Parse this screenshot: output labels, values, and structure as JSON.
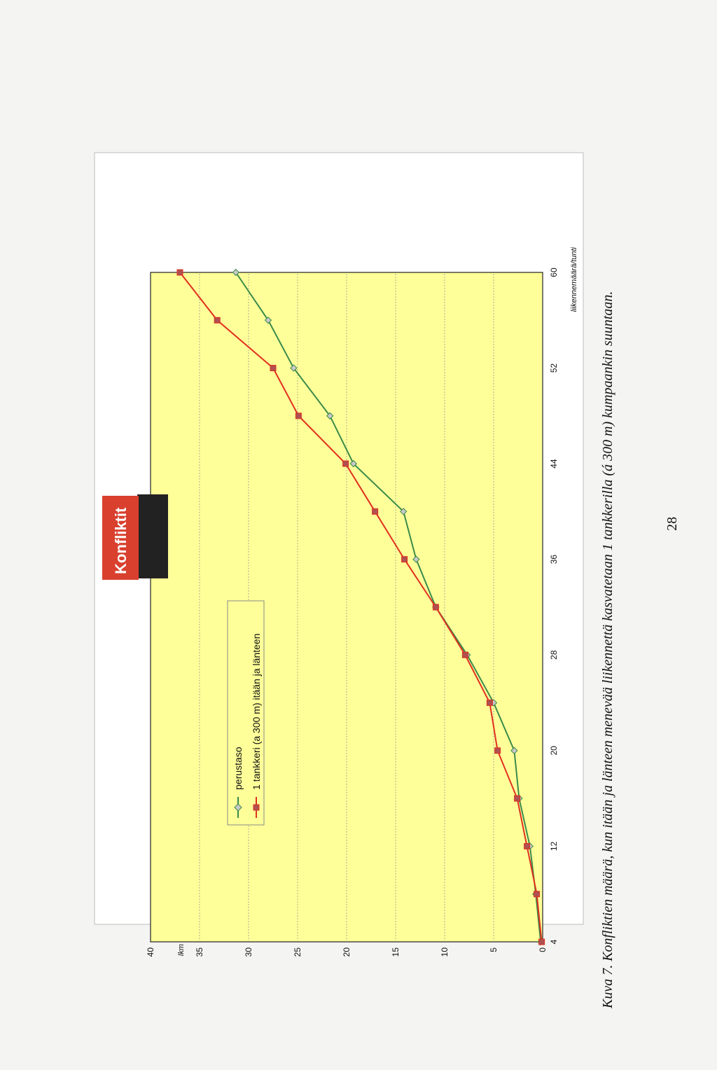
{
  "chart_data": {
    "type": "line",
    "title": "Konfliktit",
    "xlabel": "liikennemäärä/tunti",
    "ylabel": "lkm",
    "x": [
      4,
      8,
      12,
      16,
      20,
      24,
      28,
      32,
      36,
      40,
      44,
      48,
      52,
      56,
      60
    ],
    "xticks": [
      "4",
      "12",
      "20",
      "28",
      "36",
      "44",
      "52",
      "60"
    ],
    "yticks": [
      "0",
      "5",
      "10",
      "15",
      "20",
      "25",
      "30",
      "35",
      "40"
    ],
    "xlim": [
      4,
      60
    ],
    "ylim": [
      0,
      40
    ],
    "grid": true,
    "legend_position": "top-left",
    "series": [
      {
        "name": "perustaso",
        "marker": "diamond",
        "color": "#3a8a4a",
        "values": [
          0.2,
          0.7,
          1.3,
          2.4,
          2.9,
          5.0,
          7.7,
          10.9,
          12.9,
          14.2,
          19.3,
          21.7,
          25.4,
          28.0,
          31.3
        ]
      },
      {
        "name": "1 tankkeri (a 300 m)  itään ja länteen",
        "marker": "square",
        "color": "#e0301e",
        "values": [
          0.1,
          0.6,
          1.6,
          2.6,
          4.6,
          5.4,
          7.9,
          10.9,
          14.1,
          17.1,
          20.1,
          24.9,
          27.5,
          33.2,
          37.0
        ]
      }
    ]
  },
  "caption": "Kuva 7. Konfliktien määrä, kun itään ja länteen menevää liikennettä kasvatetaan 1 tankkerilla (á 300 m) kumpaankin suuntaan.",
  "page_number": "28",
  "colors": {
    "plot_background": "#ffff99",
    "title_background": "#d9402e",
    "series_1": "#3a8a4a",
    "series_2": "#e0301e"
  }
}
